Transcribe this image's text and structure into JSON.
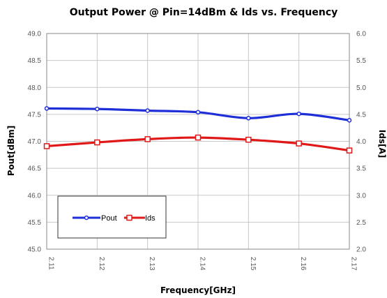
{
  "chart_data": {
    "type": "line",
    "title": "Output Power @ Pin=14dBm & Ids vs. Frequency",
    "xlabel": "Frequency[GHz]",
    "ylabel": "Pout[dBm]",
    "y2label": "Ids[A]",
    "categories": [
      "2.11",
      "2.12",
      "2.13",
      "2.14",
      "2.15",
      "2.16",
      "2.17"
    ],
    "ylim": [
      45.0,
      49.0
    ],
    "y2lim": [
      2.0,
      6.0
    ],
    "yticks": [
      "45.0",
      "45.5",
      "46.0",
      "46.5",
      "47.0",
      "47.5",
      "48.0",
      "48.5",
      "49.0"
    ],
    "y2ticks": [
      "2.0",
      "2.5",
      "3.0",
      "3.5",
      "4.0",
      "4.5",
      "5.0",
      "5.5",
      "6.0"
    ],
    "grid": true,
    "legend_position": "bottom-left",
    "series": [
      {
        "name": "Pout",
        "axis": "left",
        "color": "#1f2fd8",
        "marker": "circle",
        "values": [
          47.61,
          47.6,
          47.57,
          47.54,
          47.43,
          47.51,
          47.39
        ]
      },
      {
        "name": "Ids",
        "axis": "right",
        "color": "#e01818",
        "marker": "square",
        "values": [
          3.91,
          3.98,
          4.04,
          4.07,
          4.03,
          3.96,
          3.83
        ]
      }
    ]
  }
}
